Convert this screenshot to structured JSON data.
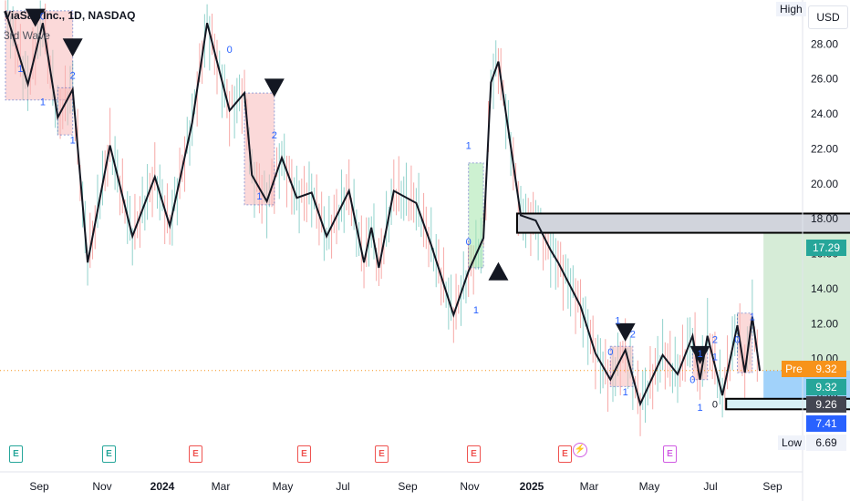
{
  "header": {
    "title": "ViaSat, Inc., 1D, NASDAQ",
    "indicator": "3rd Wave",
    "currency": "USD",
    "high_label": "High",
    "low_label": "Low",
    "pre_label": "Pre"
  },
  "price_tags": [
    {
      "value": "17.29",
      "color": "#26a69a"
    },
    {
      "value": "9.32",
      "color": "#f7931a"
    },
    {
      "value": "9.32",
      "color": "#26a69a"
    },
    {
      "value": "9.26",
      "color": "#434651"
    },
    {
      "value": "7.41",
      "color": "#2962ff"
    },
    {
      "value": "6.69",
      "color": "#f0f3fa"
    }
  ],
  "earnings_markers": [
    {
      "label": "E",
      "kind": "green"
    },
    {
      "label": "E",
      "kind": "green"
    },
    {
      "label": "E",
      "kind": "red"
    },
    {
      "label": "E",
      "kind": "red"
    },
    {
      "label": "E",
      "kind": "red"
    },
    {
      "label": "E",
      "kind": "red"
    },
    {
      "label": "E",
      "kind": "red"
    },
    {
      "label": "E",
      "kind": "violet"
    }
  ],
  "chart_data": {
    "type": "line",
    "title": "ViaSat, Inc., 1D, NASDAQ",
    "x_ticks": [
      "Sep",
      "Nov",
      "2024",
      "Mar",
      "May",
      "Jul",
      "Sep",
      "Nov",
      "2025",
      "Mar",
      "May",
      "Jul",
      "Sep"
    ],
    "y_ticks": [
      8.0,
      10.0,
      12.0,
      14.0,
      16.0,
      18.0,
      20.0,
      22.0,
      24.0,
      26.0,
      28.0
    ],
    "ylim": [
      5.5,
      30.0
    ],
    "zigzag_series": {
      "name": "3rd Wave",
      "points": [
        [
          0,
          29.9
        ],
        [
          3,
          25.7
        ],
        [
          5,
          29.2
        ],
        [
          7,
          23.8
        ],
        [
          9,
          25.4
        ],
        [
          11,
          15.5
        ],
        [
          14,
          22.2
        ],
        [
          17,
          17.0
        ],
        [
          20,
          20.4
        ],
        [
          22,
          17.6
        ],
        [
          25,
          23.5
        ],
        [
          27,
          29.2
        ],
        [
          30,
          24.2
        ],
        [
          32,
          25.2
        ],
        [
          33,
          20.5
        ],
        [
          35,
          19.0
        ],
        [
          37,
          21.5
        ],
        [
          39,
          19.2
        ],
        [
          41,
          19.5
        ],
        [
          43,
          17.0
        ],
        [
          46,
          19.6
        ],
        [
          48,
          15.5
        ],
        [
          49,
          17.5
        ],
        [
          50,
          15.2
        ],
        [
          52,
          19.6
        ],
        [
          55,
          18.9
        ],
        [
          57,
          16.5
        ],
        [
          60,
          12.5
        ],
        [
          62,
          15.0
        ],
        [
          64,
          16.9
        ],
        [
          65,
          25.8
        ],
        [
          66,
          27.0
        ],
        [
          69,
          18.2
        ],
        [
          71,
          17.9
        ],
        [
          73,
          16.2
        ],
        [
          74,
          15.5
        ],
        [
          77,
          13.0
        ],
        [
          79,
          10.3
        ],
        [
          81,
          8.8
        ],
        [
          83,
          10.5
        ],
        [
          85,
          7.4
        ],
        [
          88,
          10.2
        ],
        [
          90,
          9.1
        ],
        [
          92,
          11.3
        ],
        [
          93,
          8.8
        ],
        [
          94,
          11.3
        ],
        [
          96,
          7.9
        ],
        [
          98,
          11.9
        ],
        [
          99,
          9.2
        ],
        [
          100,
          12.4
        ],
        [
          101,
          9.3
        ]
      ]
    },
    "wave_labels": [
      "0",
      "1",
      "2",
      "1",
      "1",
      "0",
      "1",
      "2",
      "1",
      "0",
      "1",
      "1",
      "0",
      "2",
      "1",
      "1",
      "0",
      "2",
      "1",
      "1",
      "0",
      "1",
      "0"
    ],
    "boxes": [
      {
        "kind": "resistance_zone",
        "y_top": 18.3,
        "y_bottom": 17.2,
        "color": "#d1d4dc"
      },
      {
        "kind": "target_zone",
        "y_top": 17.29,
        "y_bottom": 9.32,
        "color": "#c8e6c9"
      },
      {
        "kind": "stop_zone",
        "y_top": 9.32,
        "y_bottom": 7.41,
        "color": "#90caf9"
      },
      {
        "kind": "support_zone",
        "y_top": 7.7,
        "y_bottom": 7.1,
        "color": "#d6f0f5"
      }
    ],
    "current_price": 9.32,
    "high_value": 30.0,
    "low_value": 6.69,
    "grid": false
  }
}
